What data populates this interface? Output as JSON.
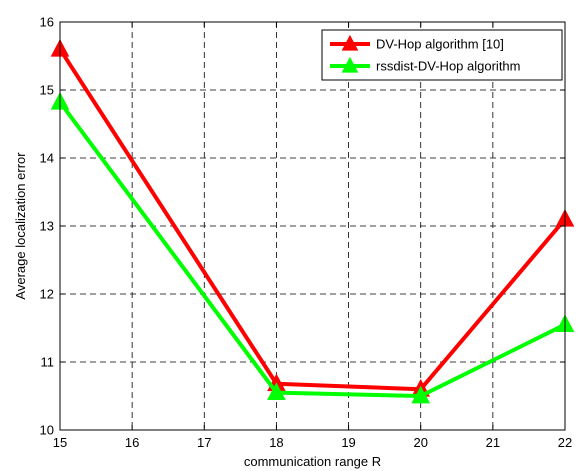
{
  "chart_data": {
    "type": "line",
    "xlabel": "communication range R",
    "ylabel": "Average localization error",
    "xlim": [
      15,
      22
    ],
    "ylim": [
      10,
      16
    ],
    "xticks": [
      15,
      16,
      17,
      18,
      19,
      20,
      21,
      22
    ],
    "yticks": [
      10,
      11,
      12,
      13,
      14,
      15,
      16
    ],
    "grid": true,
    "legend_position": "top-right",
    "series": [
      {
        "name": "DV-Hop algorithm [10]",
        "color": "#ff0000",
        "marker": "triangle-up",
        "x": [
          15,
          18,
          20,
          22
        ],
        "y": [
          15.6,
          10.68,
          10.6,
          13.1
        ]
      },
      {
        "name": "rssdist-DV-Hop algorithm",
        "color": "#00ff00",
        "marker": "triangle-up",
        "x": [
          15,
          18,
          20,
          22
        ],
        "y": [
          14.82,
          10.55,
          10.5,
          11.55
        ]
      }
    ]
  }
}
